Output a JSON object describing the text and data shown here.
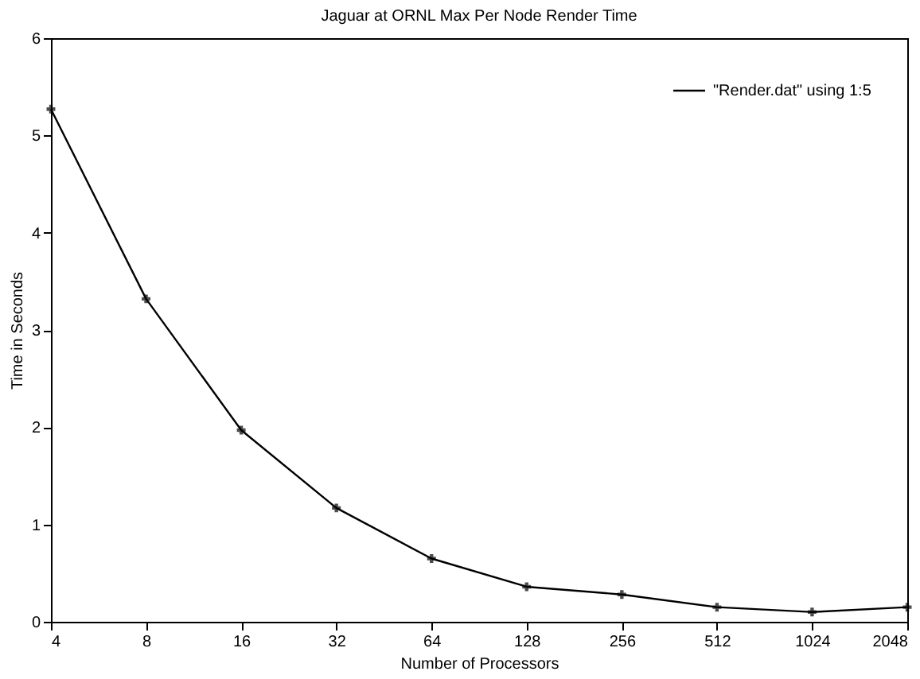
{
  "chart_data": {
    "type": "line",
    "title": "Jaguar at ORNL Max Per Node Render Time",
    "xlabel": "Number of Processors",
    "ylabel": "Time in Seconds",
    "categories": [
      "4",
      "8",
      "16",
      "32",
      "64",
      "128",
      "256",
      "512",
      "1024",
      "2048"
    ],
    "series": [
      {
        "name": "\"Render.dat\" using 1:5",
        "color": "#000000",
        "values": [
          5.27,
          3.32,
          1.97,
          1.17,
          0.65,
          0.36,
          0.28,
          0.15,
          0.1,
          0.15
        ]
      }
    ],
    "ylim": [
      0,
      6
    ],
    "yticks": [
      0,
      1,
      2,
      3,
      4,
      5,
      6
    ],
    "grid": false,
    "legend": "top right",
    "marker": "cross",
    "line_style": "solid"
  }
}
